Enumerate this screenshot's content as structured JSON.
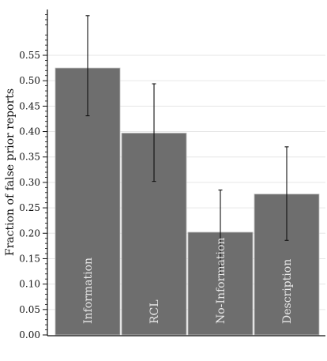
{
  "chart_data": {
    "type": "bar",
    "title": "",
    "xlabel": "",
    "ylabel": "Fraction of false prior reports",
    "categories": [
      "Information",
      "RCL",
      "No-Information",
      "Description"
    ],
    "values": [
      0.525,
      0.397,
      0.202,
      0.277
    ],
    "error_lower": [
      0.431,
      0.302,
      0.12,
      0.186
    ],
    "error_upper": [
      0.628,
      0.494,
      0.285,
      0.37
    ],
    "ylim": [
      0,
      0.63
    ],
    "yticks": [
      "0.00",
      "0.05",
      "0.10",
      "0.15",
      "0.20",
      "0.25",
      "0.30",
      "0.35",
      "0.40",
      "0.45",
      "0.50",
      "0.55"
    ],
    "grid": true,
    "bar_color": "#6e6e6e",
    "error_color": "#111111",
    "grid_color": "#e6e6e6",
    "label_color": "#e8e8e8"
  }
}
